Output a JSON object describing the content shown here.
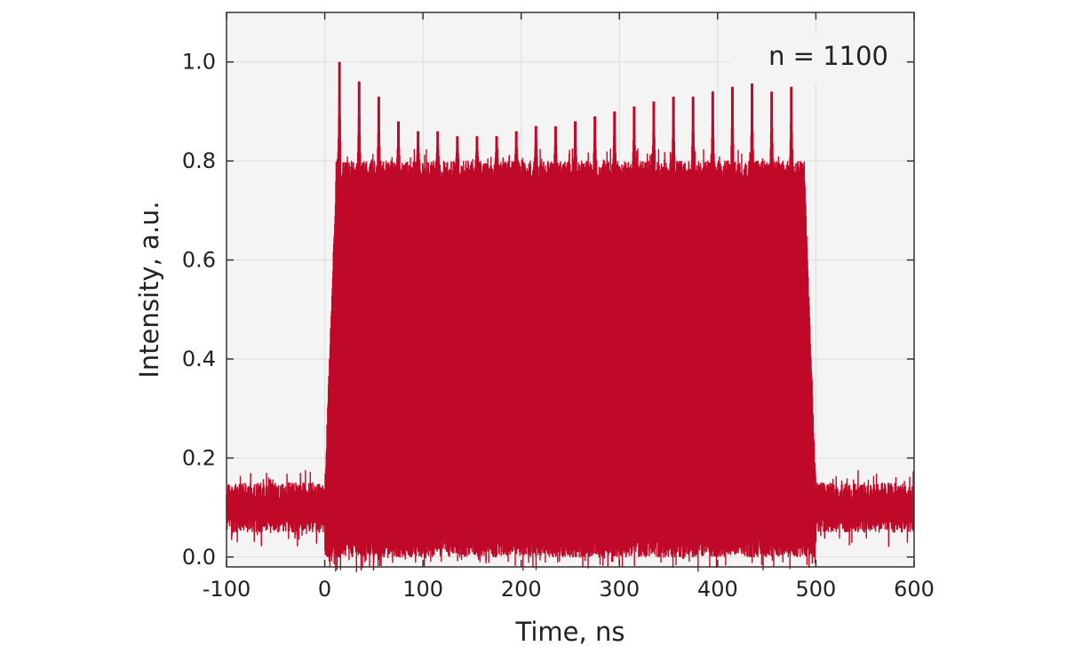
{
  "chart_data": {
    "type": "area",
    "title": "",
    "xlabel": "Time, ns",
    "ylabel": "Intensity, a.u.",
    "xlim": [
      -100,
      600
    ],
    "ylim": [
      -0.02,
      1.1
    ],
    "xticks": [
      -100,
      0,
      100,
      200,
      300,
      400,
      500,
      600
    ],
    "yticks": [
      0.0,
      0.2,
      0.4,
      0.6,
      0.8,
      1.0
    ],
    "xtick_labels": [
      "-100",
      "0",
      "100",
      "200",
      "300",
      "400",
      "500",
      "600"
    ],
    "ytick_labels": [
      "0.0",
      "0.2",
      "0.4",
      "0.6",
      "0.8",
      "1.0"
    ],
    "grid": true,
    "annotation": "n = 1100",
    "background_color": "#f4f4f4",
    "series": [
      {
        "color": "#c00828",
        "baseline_noise_band": [
          0.05,
          0.15
        ],
        "pulse_window": [
          0,
          500
        ],
        "plateau_band": [
          0.0,
          0.8
        ],
        "spikes": {
          "x": [
            15,
            35,
            55,
            75,
            95,
            115,
            135,
            155,
            175,
            195,
            215,
            235,
            255,
            275,
            295,
            315,
            335,
            355,
            375,
            395,
            415,
            435,
            455,
            475
          ],
          "y": [
            1.0,
            0.96,
            0.93,
            0.88,
            0.86,
            0.86,
            0.85,
            0.85,
            0.85,
            0.86,
            0.87,
            0.87,
            0.88,
            0.89,
            0.9,
            0.91,
            0.92,
            0.93,
            0.93,
            0.94,
            0.95,
            0.97,
            0.94,
            0.95
          ]
        }
      }
    ]
  }
}
